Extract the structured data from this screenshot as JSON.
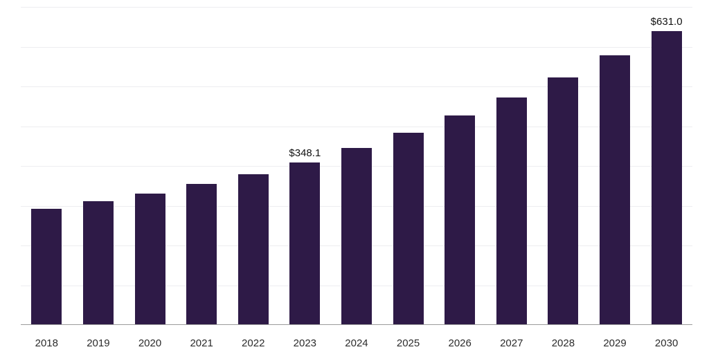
{
  "chart_data": {
    "type": "bar",
    "title": "",
    "xlabel": "",
    "ylabel": "",
    "legend": "none",
    "grid": "horizontal",
    "gridline_count": 8,
    "ylim": [
      0,
      685
    ],
    "bar_color": "#2e1a47",
    "gridline_color": "#ededf0",
    "axis_line_color": "#9a9a9a",
    "value_prefix": "$",
    "categories": [
      "2018",
      "2019",
      "2020",
      "2021",
      "2022",
      "2023",
      "2024",
      "2025",
      "2026",
      "2027",
      "2028",
      "2029",
      "2030"
    ],
    "values": [
      249,
      265,
      282,
      302,
      323,
      348.1,
      379,
      412,
      449,
      489,
      532,
      579,
      631.0
    ],
    "annotations": [
      {
        "category": "2023",
        "text": "$348.1"
      },
      {
        "category": "2030",
        "text": "$631.0"
      }
    ]
  }
}
